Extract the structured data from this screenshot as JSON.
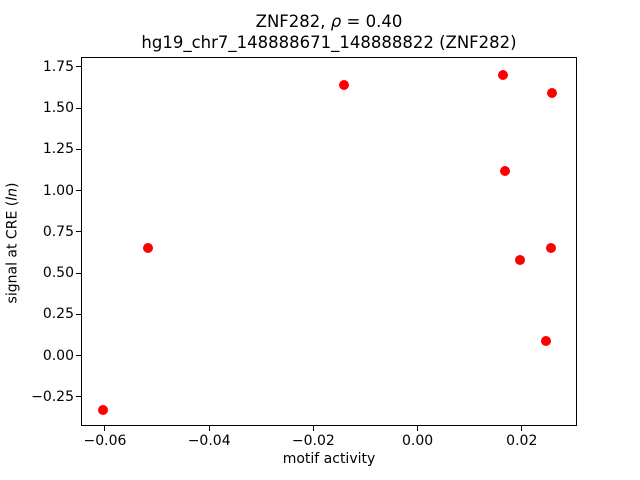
{
  "figure": {
    "title": {
      "line1": {
        "prefix": "ZNF282, ",
        "rho": "ρ",
        "suffix": " = 0.40"
      },
      "line2": "hg19_chr7_148888671_148888822 (ZNF282)"
    },
    "xlabel": "motif activity",
    "ylabel": {
      "prefix": "signal at CRE (",
      "italic": "ln",
      "suffix": ")"
    }
  },
  "chart_data": {
    "type": "scatter",
    "title": "ZNF282, ρ = 0.40",
    "subtitle": "hg19_chr7_148888671_148888822 (ZNF282)",
    "correlation_rho": 0.4,
    "xlabel": "motif activity",
    "ylabel": "signal at CRE (ln)",
    "legend": "none",
    "grid": false,
    "marker_color": "#ff0000",
    "axis_color": "#000000",
    "background_color": "#ffffff",
    "xlim": [
      -0.0646,
      0.0306
    ],
    "ylim": [
      -0.426,
      1.809
    ],
    "xticks": {
      "values": [
        -0.06,
        -0.04,
        -0.02,
        0.0,
        0.02
      ],
      "labels": [
        "−0.06",
        "−0.04",
        "−0.02",
        "0.00",
        "0.02"
      ]
    },
    "yticks": {
      "values": [
        -0.25,
        0.0,
        0.25,
        0.5,
        0.75,
        1.0,
        1.25,
        1.5,
        1.75
      ],
      "labels": [
        "−0.25",
        "0.00",
        "0.25",
        "0.50",
        "0.75",
        "1.00",
        "1.25",
        "1.50",
        "1.75"
      ]
    },
    "points": [
      [
        -0.0142,
        1.64
      ],
      [
        0.0164,
        1.7
      ],
      [
        0.0258,
        1.59
      ],
      [
        0.0168,
        1.12
      ],
      [
        -0.0517,
        0.65
      ],
      [
        0.0257,
        0.65
      ],
      [
        0.0197,
        0.58
      ],
      [
        0.0247,
        0.09
      ],
      [
        -0.0604,
        -0.33
      ]
    ]
  }
}
